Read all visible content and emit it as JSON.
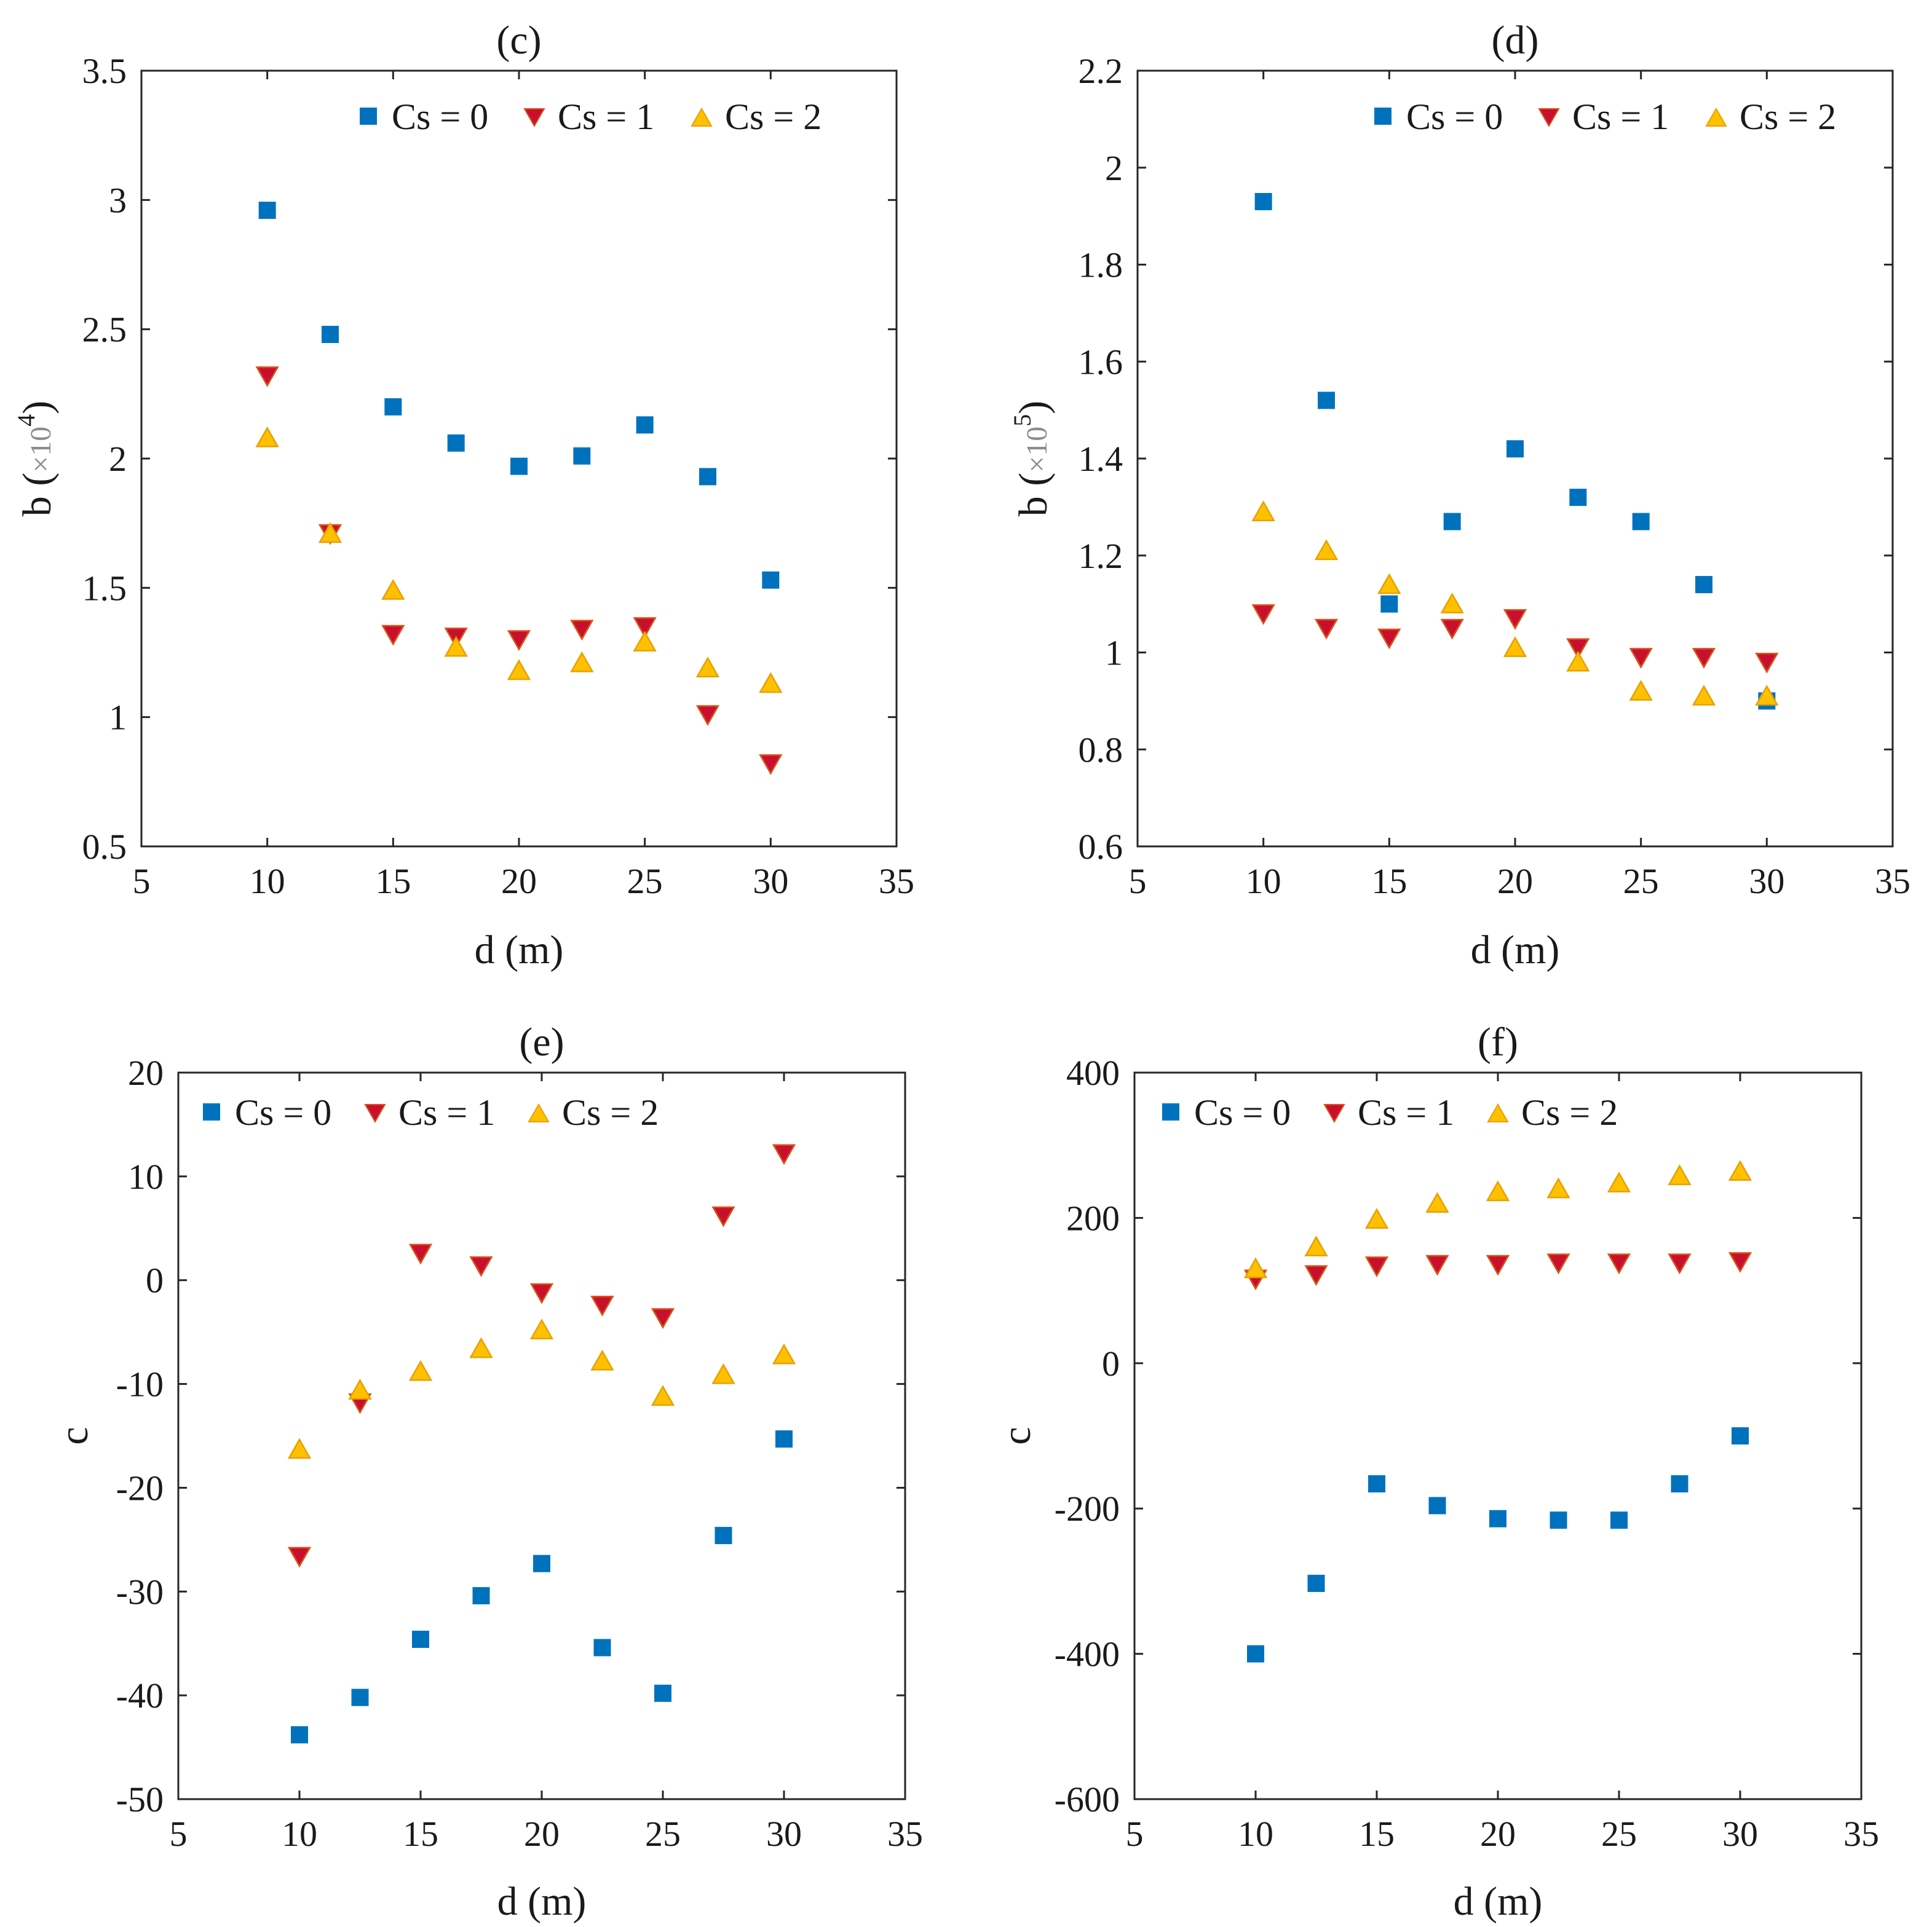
{
  "colors": {
    "cs0_fill": "#0072BD",
    "cs1_fill": "#C8102E",
    "cs1_stroke": "#D95319",
    "cs2_fill": "#FFC000",
    "cs2_stroke": "#E8A000",
    "axis": "#262626"
  },
  "legend_labels": [
    "Cs = 0",
    "Cs = 1",
    "Cs = 2"
  ],
  "chart_data": [
    {
      "id": "c",
      "type": "scatter",
      "title": "(c)",
      "xlabel": "d (m)",
      "ylabel_main": "b (",
      "ylabel_times": "×10",
      "ylabel_exp": "4",
      "ylabel_close": ")",
      "xlim": [
        5,
        35
      ],
      "ylim": [
        0.5,
        3.5
      ],
      "xticks": [
        "5",
        "10",
        "15",
        "20",
        "25",
        "30",
        "35"
      ],
      "yticks": [
        "0.5",
        "1",
        "1.5",
        "2",
        "2.5",
        "3",
        "3.5"
      ],
      "legend_position": "top",
      "x": [
        10,
        12.5,
        15,
        17.5,
        20,
        22.5,
        25,
        27.5,
        30
      ],
      "series": [
        {
          "name": "Cs = 0",
          "marker": "square",
          "values": [
            2.96,
            2.48,
            2.2,
            2.06,
            1.97,
            2.01,
            2.13,
            1.93,
            1.53
          ]
        },
        {
          "name": "Cs = 1",
          "marker": "triangle-down",
          "values": [
            2.32,
            1.71,
            1.32,
            1.31,
            1.3,
            1.34,
            1.35,
            1.01,
            0.82
          ]
        },
        {
          "name": "Cs = 2",
          "marker": "triangle-up",
          "values": [
            2.08,
            1.71,
            1.49,
            1.27,
            1.18,
            1.21,
            1.29,
            1.19,
            1.13
          ]
        }
      ]
    },
    {
      "id": "d",
      "type": "scatter",
      "title": "(d)",
      "xlabel": "d (m)",
      "ylabel_main": "b (",
      "ylabel_times": "×10",
      "ylabel_exp": "5",
      "ylabel_close": ")",
      "xlim": [
        5,
        35
      ],
      "ylim": [
        0.6,
        2.2
      ],
      "xticks": [
        "5",
        "10",
        "15",
        "20",
        "25",
        "30",
        "35"
      ],
      "yticks": [
        "0.6",
        "0.8",
        "1",
        "1.2",
        "1.4",
        "1.6",
        "1.8",
        "2",
        "2.2"
      ],
      "legend_position": "top",
      "x": [
        10,
        12.5,
        15,
        17.5,
        20,
        22.5,
        25,
        27.5,
        30
      ],
      "series": [
        {
          "name": "Cs = 0",
          "marker": "square",
          "values": [
            1.93,
            1.52,
            1.1,
            1.27,
            1.42,
            1.32,
            1.27,
            1.14,
            0.9
          ]
        },
        {
          "name": "Cs = 1",
          "marker": "triangle-down",
          "values": [
            1.08,
            1.05,
            1.03,
            1.05,
            1.07,
            1.01,
            0.99,
            0.99,
            0.98
          ]
        },
        {
          "name": "Cs = 2",
          "marker": "triangle-up",
          "values": [
            1.29,
            1.21,
            1.14,
            1.1,
            1.01,
            0.98,
            0.92,
            0.91,
            0.91
          ]
        }
      ]
    },
    {
      "id": "e",
      "type": "scatter",
      "title": "(e)",
      "xlabel": "d (m)",
      "ylabel_main": "c",
      "ylabel_times": "",
      "ylabel_exp": "",
      "ylabel_close": "",
      "xlim": [
        5,
        35
      ],
      "ylim": [
        -50,
        20
      ],
      "xticks": [
        "5",
        "10",
        "15",
        "20",
        "25",
        "30",
        "35"
      ],
      "yticks": [
        "-50",
        "-40",
        "-30",
        "-20",
        "-10",
        "0",
        "10",
        "20"
      ],
      "legend_position": "top-left",
      "x": [
        10,
        12.5,
        15,
        17.5,
        20,
        22.5,
        25,
        27.5,
        30
      ],
      "series": [
        {
          "name": "Cs = 0",
          "marker": "square",
          "x": [
            10,
            12.5,
            15,
            17.5,
            20,
            22.5,
            25,
            27.5,
            30
          ],
          "values": [
            -43.8,
            -40.2,
            -34.6,
            -30.4,
            -27.3,
            -35.4,
            -39.8,
            -24.6,
            -15.3
          ]
        },
        {
          "name": "Cs = 1",
          "marker": "triangle-down",
          "values": [
            -26.6,
            -11.8,
            2.6,
            1.4,
            -1.2,
            -2.4,
            -3.6,
            6.2,
            12.2
          ]
        },
        {
          "name": "Cs = 2",
          "marker": "triangle-up",
          "values": [
            -16.3,
            -10.6,
            -8.8,
            -6.6,
            -4.8,
            -7.8,
            -11.2,
            -9.1,
            -7.2
          ]
        }
      ]
    },
    {
      "id": "f",
      "type": "scatter",
      "title": "(f)",
      "xlabel": "d (m)",
      "ylabel_main": "c",
      "ylabel_times": "",
      "ylabel_exp": "",
      "ylabel_close": "",
      "xlim": [
        5,
        35
      ],
      "ylim": [
        -600,
        400
      ],
      "xticks": [
        "5",
        "10",
        "15",
        "20",
        "25",
        "30",
        "35"
      ],
      "yticks": [
        "-600",
        "-400",
        "-200",
        "0",
        "200",
        "400"
      ],
      "legend_position": "top-left",
      "x": [
        10,
        12.5,
        15,
        17.5,
        20,
        22.5,
        25,
        27.5,
        30
      ],
      "series": [
        {
          "name": "Cs = 0",
          "marker": "square",
          "values": [
            -400,
            -303,
            -166,
            -196,
            -214,
            -216,
            -216,
            -166,
            -100
          ]
        },
        {
          "name": "Cs = 1",
          "marker": "triangle-down",
          "values": [
            116,
            122,
            134,
            136,
            136,
            138,
            138,
            138,
            140
          ]
        },
        {
          "name": "Cs = 2",
          "marker": "triangle-up",
          "values": [
            130,
            160,
            198,
            220,
            236,
            240,
            248,
            258,
            264
          ]
        }
      ]
    }
  ]
}
